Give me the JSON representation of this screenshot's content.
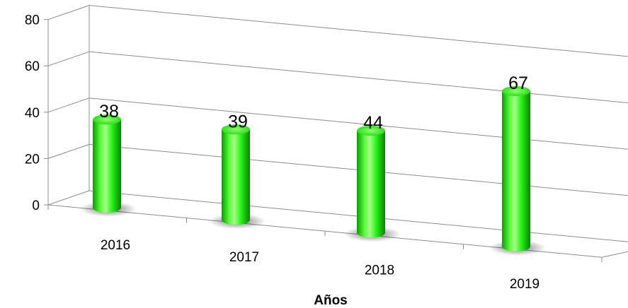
{
  "chart_data": {
    "type": "bar",
    "categories": [
      "2016",
      "2017",
      "2018",
      "2019"
    ],
    "values": [
      38,
      39,
      44,
      67
    ],
    "title": "",
    "xlabel": "Años",
    "ylabel": "",
    "ylim": [
      0,
      80
    ],
    "yticks": [
      "0",
      "20",
      "40",
      "60",
      "80"
    ],
    "grid": true,
    "legend": "none",
    "colors": {
      "bar": "#22ee11",
      "bar_dark": "#0a8a05",
      "bar_light": "#b8ff9a",
      "grid": "#8c8c8c"
    }
  }
}
